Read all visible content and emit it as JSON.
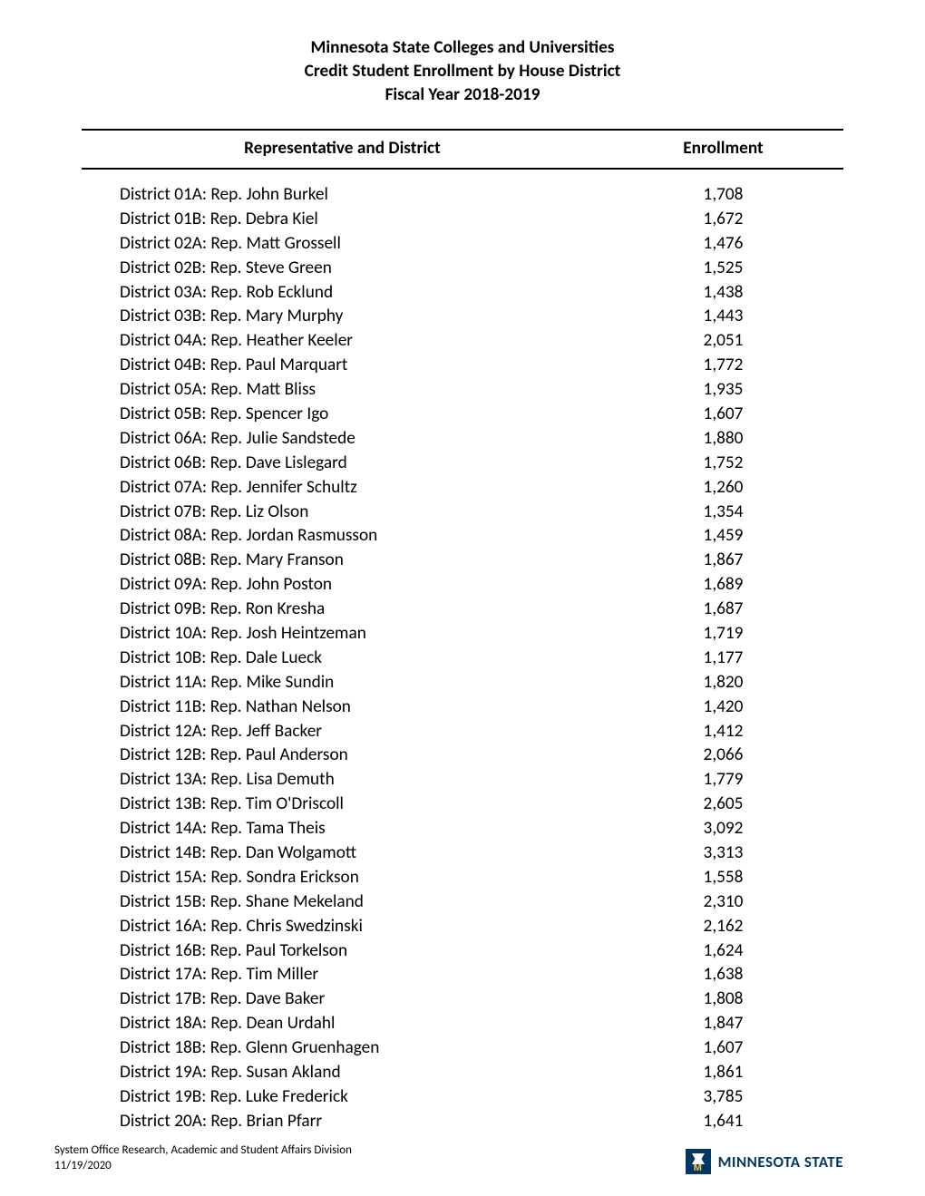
{
  "title": {
    "line1": "Minnesota State Colleges and Universities",
    "line2": "Credit Student Enrollment by House District",
    "line3": "Fiscal Year 2018-2019"
  },
  "tableHeaders": {
    "rep": "Representative and District",
    "enr": "Enrollment"
  },
  "rows": [
    {
      "rep": "District 01A:  Rep. John Burkel",
      "enr": "1,708"
    },
    {
      "rep": "District 01B:  Rep. Debra Kiel",
      "enr": "1,672"
    },
    {
      "rep": "District 02A:  Rep. Matt Grossell",
      "enr": "1,476"
    },
    {
      "rep": "District 02B:  Rep. Steve Green",
      "enr": "1,525"
    },
    {
      "rep": "District 03A:  Rep. Rob  Ecklund",
      "enr": "1,438"
    },
    {
      "rep": "District 03B:  Rep. Mary Murphy",
      "enr": "1,443"
    },
    {
      "rep": "District 04A:  Rep. Heather Keeler",
      "enr": "2,051"
    },
    {
      "rep": "District 04B:  Rep. Paul Marquart",
      "enr": "1,772"
    },
    {
      "rep": "District 05A:  Rep. Matt Bliss",
      "enr": "1,935"
    },
    {
      "rep": "District 05B:  Rep. Spencer Igo",
      "enr": "1,607"
    },
    {
      "rep": "District 06A:  Rep. Julie Sandstede",
      "enr": "1,880"
    },
    {
      "rep": "District 06B:  Rep. Dave Lislegard",
      "enr": "1,752"
    },
    {
      "rep": "District 07A:  Rep. Jennifer Schultz",
      "enr": "1,260"
    },
    {
      "rep": "District 07B:  Rep. Liz Olson",
      "enr": "1,354"
    },
    {
      "rep": "District 08A:  Rep. Jordan Rasmusson",
      "enr": "1,459"
    },
    {
      "rep": "District 08B:  Rep. Mary Franson",
      "enr": "1,867"
    },
    {
      "rep": "District 09A:  Rep. John Poston",
      "enr": "1,689"
    },
    {
      "rep": "District 09B:  Rep. Ron Kresha",
      "enr": "1,687"
    },
    {
      "rep": "District 10A:  Rep. Josh Heintzeman",
      "enr": "1,719"
    },
    {
      "rep": "District 10B:  Rep. Dale Lueck",
      "enr": "1,177"
    },
    {
      "rep": "District 11A:  Rep. Mike Sundin",
      "enr": "1,820"
    },
    {
      "rep": "District 11B:  Rep. Nathan Nelson",
      "enr": "1,420"
    },
    {
      "rep": "District 12A:  Rep. Jeff Backer",
      "enr": "1,412"
    },
    {
      "rep": "District 12B:  Rep. Paul Anderson",
      "enr": "2,066"
    },
    {
      "rep": "District 13A:  Rep. Lisa Demuth",
      "enr": "1,779"
    },
    {
      "rep": "District 13B:  Rep. Tim O'Driscoll",
      "enr": "2,605"
    },
    {
      "rep": "District 14A:  Rep. Tama Theis",
      "enr": "3,092"
    },
    {
      "rep": "District 14B:  Rep. Dan Wolgamott",
      "enr": "3,313"
    },
    {
      "rep": "District 15A:  Rep. Sondra Erickson",
      "enr": "1,558"
    },
    {
      "rep": "District 15B:  Rep. Shane Mekeland",
      "enr": "2,310"
    },
    {
      "rep": "District 16A:  Rep. Chris Swedzinski",
      "enr": "2,162"
    },
    {
      "rep": "District 16B:  Rep. Paul Torkelson",
      "enr": "1,624"
    },
    {
      "rep": "District 17A:  Rep. Tim Miller",
      "enr": "1,638"
    },
    {
      "rep": "District 17B:  Rep. Dave Baker",
      "enr": "1,808"
    },
    {
      "rep": "District 18A:  Rep. Dean Urdahl",
      "enr": "1,847"
    },
    {
      "rep": "District 18B:  Rep. Glenn Gruenhagen",
      "enr": "1,607"
    },
    {
      "rep": "District 19A:  Rep. Susan Akland",
      "enr": "1,861"
    },
    {
      "rep": "District 19B:  Rep. Luke Frederick",
      "enr": "3,785"
    },
    {
      "rep": "District 20A:  Rep. Brian Pfarr",
      "enr": "1,641"
    }
  ],
  "footer": {
    "line1": "System Office Research, Academic and Student Affairs Division",
    "line2": "11/19/2020",
    "brandText": "MINNESOTA STATE",
    "brandM": "M"
  },
  "style": {
    "pageWidth": 1020,
    "pageHeight": 1319,
    "bodyFontFamily": "Calibri, Segoe UI, Arial, sans-serif",
    "textColor": "#000000",
    "backgroundColor": "#ffffff",
    "titleFontSize": 19.3,
    "titleFontWeight": 700,
    "headerFontSize": 19.3,
    "headerFontWeight": 700,
    "rowFontSize": 19.3,
    "footerFontSize": 13,
    "ruleColor": "#000000",
    "ruleWidth": 2,
    "brandBlue": "#003865",
    "brandGold": "#ffc845",
    "brandTextSize": 17,
    "repColumnWidth": 575,
    "repCellPaddingLeft": 42
  }
}
